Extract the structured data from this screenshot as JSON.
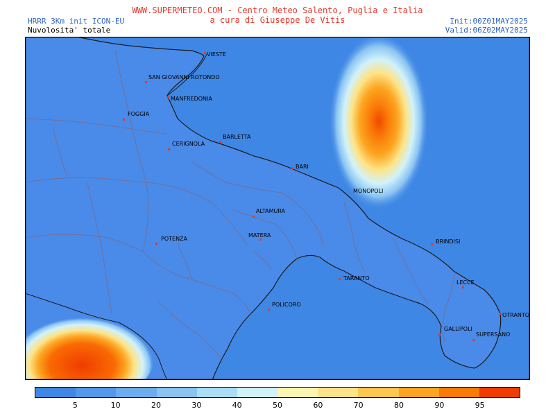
{
  "header": {
    "title_line1": "WWW.SUPERMETEO.COM - Centro Meteo Salento, Puglia e Italia",
    "title_line2": "a cura di Giuseppe De Vitis",
    "model": "HRRR 3Km init ICON-EU",
    "field": "Nuvolosita' totale",
    "init": "Init:00Z01MAY2025",
    "valid": "Valid:06Z02MAY2025"
  },
  "colors": {
    "sea": "#3f87e5",
    "land": "#4a8ae8",
    "border": "#000000",
    "boundary": "#7a6b8a",
    "coast": "#1a1a1a"
  },
  "cities": [
    "VIESTE",
    "SAN GIOVANNI ROTONDO",
    "MANFREDONIA",
    "FOGGIA",
    "CERIGNOLA",
    "BARLETTA",
    "BARI",
    "MONOPOLI",
    "ALTAMURA",
    "MATERA",
    "POTENZA",
    "BRINDISI",
    "TARANTO",
    "LECCE",
    "POLICORO",
    "OTRANTO",
    "GALLIPOLI",
    "SUPERSANO"
  ],
  "legend": {
    "colors": [
      "#3f87e5",
      "#5299ea",
      "#6cadee",
      "#8ac4f2",
      "#aadef6",
      "#d2f2fa",
      "#fcf7b0",
      "#fde488",
      "#fdc74e",
      "#fca520",
      "#fa7a08",
      "#f03c00"
    ],
    "labels": [
      "5",
      "10",
      "20",
      "30",
      "40",
      "50",
      "60",
      "70",
      "80",
      "90",
      "95"
    ]
  }
}
